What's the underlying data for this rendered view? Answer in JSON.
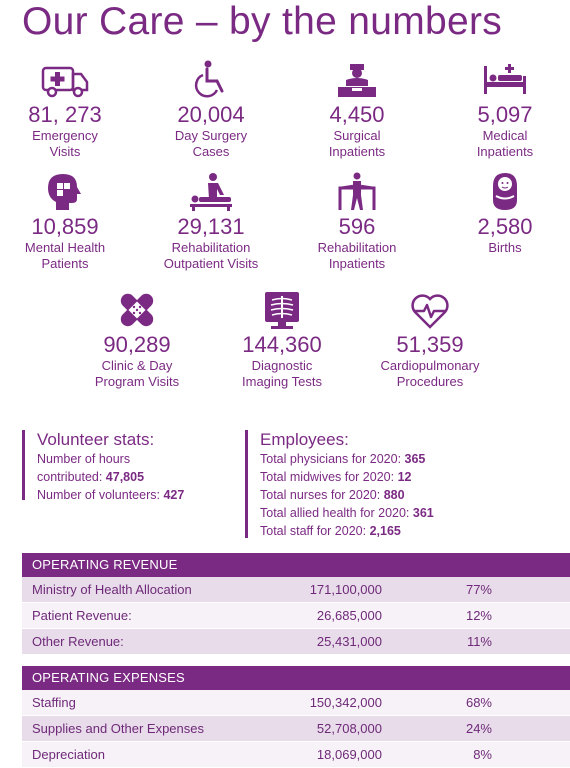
{
  "title": "Our Care – by the numbers",
  "stats": [
    {
      "number": "81, 273",
      "label1": "Emergency",
      "label2": "Visits",
      "icon": "ambulance-icon"
    },
    {
      "number": "20,004",
      "label1": "Day Surgery",
      "label2": "Cases",
      "icon": "wheelchair-icon"
    },
    {
      "number": "4,450",
      "label1": "Surgical",
      "label2": "Inpatients",
      "icon": "surgeon-icon"
    },
    {
      "number": "5,097",
      "label1": "Medical",
      "label2": "Inpatients",
      "icon": "hospital-bed-icon"
    },
    {
      "number": "10,859",
      "label1": "Mental Health",
      "label2": "Patients",
      "icon": "head-puzzle-icon"
    },
    {
      "number": "29,131",
      "label1": "Rehabilitation",
      "label2": "Outpatient Visits",
      "icon": "physiotherapy-icon"
    },
    {
      "number": "596",
      "label1": "Rehabilitation",
      "label2": "Inpatients",
      "icon": "walker-icon"
    },
    {
      "number": "2,580",
      "label1": "Births",
      "label2": "",
      "icon": "baby-icon"
    },
    {
      "number": "90,289",
      "label1": "Clinic & Day",
      "label2": "Program Visits",
      "icon": "bandage-icon"
    },
    {
      "number": "144,360",
      "label1": "Diagnostic",
      "label2": "Imaging Tests",
      "icon": "xray-icon"
    },
    {
      "number": "51,359",
      "label1": "Cardiopulmonary",
      "label2": "Procedures",
      "icon": "heartbeat-icon"
    }
  ],
  "volunteer": {
    "heading": "Volunteer stats:",
    "line1": "Number of hours",
    "line2_label": "contributed: ",
    "line2_value": "47,805",
    "line3_label": "Number of volunteers: ",
    "line3_value": "427"
  },
  "employees": {
    "heading": "Employees:",
    "rows": [
      {
        "label": "Total physicians for 2020: ",
        "value": "365"
      },
      {
        "label": "Total midwives for 2020: ",
        "value": "12"
      },
      {
        "label": "Total nurses for 2020: ",
        "value": "880"
      },
      {
        "label": "Total allied health for 2020: ",
        "value": "361"
      },
      {
        "label": "Total staff for 2020: ",
        "value": "2,165"
      }
    ]
  },
  "revenue": {
    "header": "OPERATING REVENUE",
    "rows": [
      {
        "label": "Ministry of Health Allocation",
        "amount": "171,100,000",
        "pct": "77%"
      },
      {
        "label": "Patient Revenue:",
        "amount": "26,685,000",
        "pct": "12%"
      },
      {
        "label": "Other Revenue:",
        "amount": "25,431,000",
        "pct": "11%"
      }
    ]
  },
  "expenses": {
    "header": "OPERATING EXPENSES",
    "rows": [
      {
        "label": "Staffing",
        "amount": "150,342,000",
        "pct": "68%"
      },
      {
        "label": "Supplies and Other Expenses",
        "amount": "52,708,000",
        "pct": "24%"
      },
      {
        "label": "Depreciation",
        "amount": "18,069,000",
        "pct": "8%"
      }
    ]
  },
  "colors": {
    "brand": "#7b2a83",
    "shade": "#e8dbea",
    "light": "#f7f1f8"
  }
}
